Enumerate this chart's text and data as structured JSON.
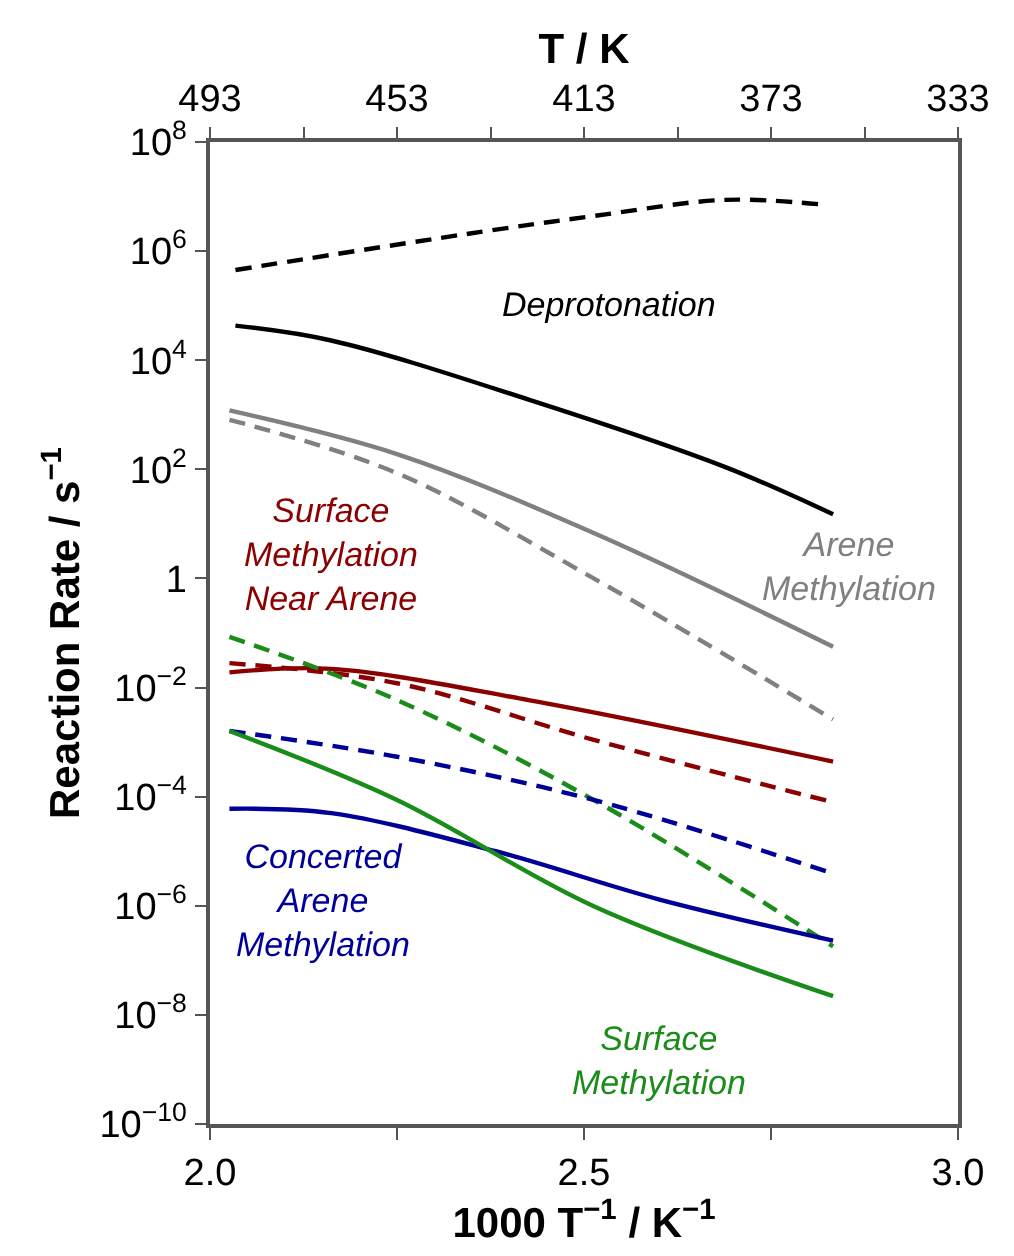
{
  "chart_data": {
    "type": "line",
    "xlabel": "1000 T$^{−1}$ / K$^{−1}$",
    "ylabel": "Reaction Rate / s$^{−1}$",
    "x2label": "T / K",
    "xlim": [
      2.0,
      3.0
    ],
    "xticks": [
      {
        "value": 2.0,
        "label": "2.0"
      },
      {
        "value": 2.25,
        "label": null
      },
      2.5,
      {
        "value": 2.75,
        "label": null
      },
      {
        "value": 3.0,
        "label": "3.0"
      }
    ],
    "x2lim": [
      493,
      333
    ],
    "x2ticks": [
      493,
      {
        "value": 473,
        "label": null
      },
      453,
      {
        "value": 433,
        "label": null
      },
      413,
      {
        "value": 393,
        "label": null
      },
      373,
      {
        "value": 353,
        "label": null
      },
      333
    ],
    "log": "y",
    "ylim": [
      1e-10,
      100000000.0
    ],
    "yticks": [
      {
        "value": 100000000.0,
        "label": "10$^{8}$"
      },
      {
        "value": 1000000.0,
        "label": "10$^{6}$"
      },
      {
        "value": 10000.0,
        "label": "10$^{4}$"
      },
      {
        "value": 100.0,
        "label": "10$^{2}$"
      },
      1,
      {
        "value": 0.01,
        "label": "10$^{−2}$"
      },
      {
        "value": 0.0001,
        "label": "10$^{−4}$"
      },
      {
        "value": 1e-06,
        "label": "10$^{−6}$"
      },
      {
        "value": 1e-08,
        "label": "10$^{−8}$"
      },
      {
        "value": 1e-10,
        "label": "10$^{−10}$"
      }
    ],
    "legend": false,
    "marker": "none",
    "series": [
      {
        "color": "#000000",
        "line_style": "dashed",
        "x": [
          2.034,
          2.337,
          2.513,
          2.689,
          2.816
        ],
        "values": [
          450000.0,
          2000000.0,
          4400000.0,
          8700000.0,
          7200000.0
        ]
      },
      {
        "name": "Deprotonation",
        "color": "#000000",
        "line_style": "solid",
        "x": [
          2.034,
          2.162,
          2.426,
          2.689,
          2.833
        ],
        "values": [
          43000.0,
          23000.0,
          1900.0,
          110,
          15
        ]
      },
      {
        "name": "Arene\nMethylation",
        "color": "#808080",
        "line_style": "solid",
        "x": [
          2.026,
          2.25,
          2.513,
          2.833
        ],
        "values": [
          1200.0,
          190,
          6.8,
          0.056
        ]
      },
      {
        "color": "#808080",
        "line_style": "dashed",
        "x": [
          2.026,
          2.25,
          2.513,
          2.833
        ],
        "values": [
          810,
          85,
          1.0,
          0.0026
        ]
      },
      {
        "name": "Surface\nMethylation\nNear Arene",
        "color": "#8b0000",
        "line_style": "solid",
        "x": [
          2.026,
          2.162,
          2.426,
          2.833
        ],
        "values": [
          0.019,
          0.022,
          0.0059,
          0.00044
        ]
      },
      {
        "color": "#8b0000",
        "line_style": "dashed",
        "x": [
          2.026,
          2.25,
          2.513,
          2.833
        ],
        "values": [
          0.028,
          0.012,
          0.0011,
          7.9e-05
        ]
      },
      {
        "color": "#1a8c1a",
        "line_style": "dashed",
        "x": [
          2.026,
          2.25,
          2.513,
          2.833
        ],
        "values": [
          0.085,
          0.0059,
          8.7e-05,
          1.8e-07
        ]
      },
      {
        "color": "#000099",
        "line_style": "dashed",
        "x": [
          2.026,
          2.25,
          2.513,
          2.833
        ],
        "values": [
          0.0016,
          0.00054,
          8.7e-05,
          3.9e-06
        ]
      },
      {
        "name": "Concerted\nArene\nMethylation",
        "color": "#000099",
        "line_style": "solid",
        "x": [
          2.026,
          2.162,
          2.382,
          2.601,
          2.833
        ],
        "values": [
          6e-05,
          5e-05,
          1e-05,
          1.3e-06,
          2.3e-07
        ]
      },
      {
        "name": "Surface\nMethylation",
        "color": "#1a8c1a",
        "line_style": "solid",
        "x": [
          2.026,
          2.25,
          2.513,
          2.833
        ],
        "values": [
          0.0016,
          8.7e-05,
          9.8e-07,
          2.2e-08
        ]
      }
    ]
  }
}
